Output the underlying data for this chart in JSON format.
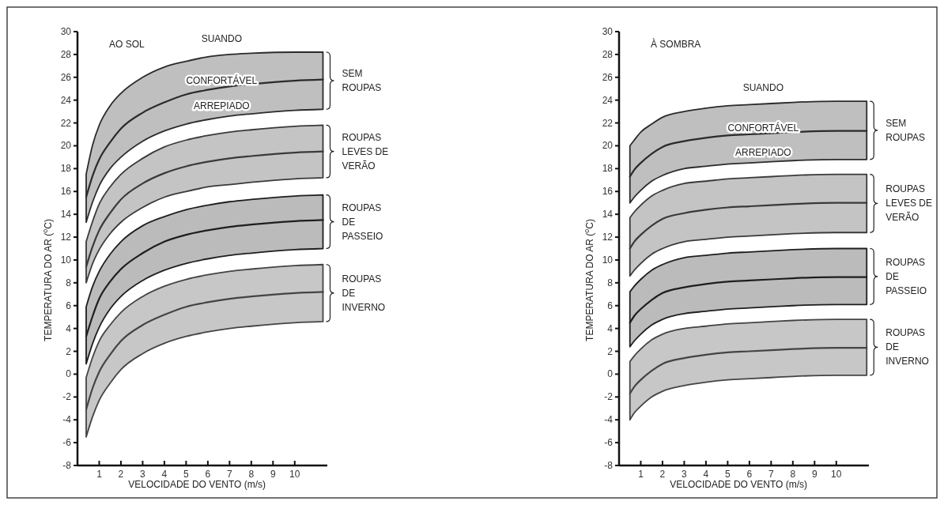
{
  "chart_data": [
    {
      "type": "line",
      "title": "AO SOL",
      "xlabel": "VELOCIDADE DO VENTO (m/s)",
      "ylabel": "TEMPERATURA DO AR ($^{o}$C)",
      "xlim": [
        0,
        11.5
      ],
      "xticks": [
        1,
        2,
        3,
        4,
        5,
        6,
        7,
        8,
        9,
        10
      ],
      "ylim": [
        -8,
        30
      ],
      "yticks": [
        -8,
        -6,
        -4,
        -2,
        0,
        2,
        4,
        6,
        8,
        10,
        12,
        14,
        16,
        18,
        20,
        22,
        24,
        26,
        28,
        30
      ],
      "grid": false,
      "legend": false,
      "x": [
        0.4,
        0.7,
        1,
        1.5,
        2,
        3,
        4,
        5,
        6,
        7,
        8,
        10,
        11.3
      ],
      "annotations": [
        "SUANDO",
        "CONFORTÁVEL",
        "ARREPIADO"
      ],
      "series": [
        {
          "name": "SEM ROUPAS",
          "color": "#2b2b2b",
          "values": [
            15.5,
            17.4,
            18.8,
            20.3,
            21.5,
            22.9,
            23.8,
            24.5,
            24.9,
            25.2,
            25.4,
            25.7,
            25.8
          ],
          "lower": [
            13.3,
            15.1,
            16.5,
            18.0,
            19.0,
            20.4,
            21.3,
            21.9,
            22.3,
            22.6,
            22.8,
            23.1,
            23.2
          ],
          "upper": [
            17.5,
            20.1,
            21.8,
            23.5,
            24.6,
            26.0,
            26.9,
            27.4,
            27.8,
            28.0,
            28.1,
            28.2,
            28.2
          ]
        },
        {
          "name": "ROUPAS LEVES DE VERÃO",
          "color": "#3a3a3a",
          "values": [
            9.4,
            11.2,
            12.6,
            14.1,
            15.3,
            16.7,
            17.6,
            18.2,
            18.6,
            18.9,
            19.1,
            19.4,
            19.5
          ],
          "lower": [
            8.0,
            9.7,
            10.9,
            12.3,
            13.3,
            14.6,
            15.5,
            16.0,
            16.4,
            16.6,
            16.8,
            17.1,
            17.2
          ],
          "upper": [
            11.6,
            13.4,
            14.9,
            16.4,
            17.5,
            18.9,
            19.9,
            20.5,
            20.9,
            21.2,
            21.4,
            21.7,
            21.8
          ]
        },
        {
          "name": "ROUPAS DE PASSEIO",
          "color": "#1e1e1e",
          "values": [
            3.3,
            5.1,
            6.6,
            8.1,
            9.2,
            10.6,
            11.6,
            12.2,
            12.6,
            12.9,
            13.1,
            13.4,
            13.5
          ],
          "lower": [
            0.9,
            2.7,
            4.1,
            5.7,
            6.8,
            8.2,
            9.1,
            9.7,
            10.1,
            10.4,
            10.6,
            10.9,
            11.0
          ],
          "upper": [
            5.9,
            7.7,
            9.0,
            10.5,
            11.6,
            13.0,
            13.8,
            14.4,
            14.8,
            15.1,
            15.3,
            15.6,
            15.7
          ]
        },
        {
          "name": "ROUPAS DE INVERNO",
          "color": "#444444",
          "values": [
            -3.1,
            -1.2,
            0.2,
            1.7,
            2.9,
            4.3,
            5.2,
            5.9,
            6.3,
            6.6,
            6.8,
            7.1,
            7.2
          ],
          "lower": [
            -5.5,
            -3.7,
            -2.3,
            -0.8,
            0.4,
            1.8,
            2.7,
            3.3,
            3.7,
            4.0,
            4.2,
            4.5,
            4.6
          ],
          "upper": [
            -0.3,
            1.5,
            2.9,
            4.3,
            5.4,
            6.8,
            7.7,
            8.3,
            8.7,
            9.0,
            9.2,
            9.5,
            9.6
          ]
        }
      ]
    },
    {
      "type": "line",
      "title": "À SOMBRA",
      "xlabel": "VELOCIDADE DO VENTO (m/s)",
      "ylabel": "TEMPERATURA DO AR ($^{o}$C)",
      "xlim": [
        0,
        11.5
      ],
      "xticks": [
        1,
        2,
        3,
        4,
        5,
        6,
        7,
        8,
        9,
        10
      ],
      "ylim": [
        -8,
        30
      ],
      "yticks": [
        -8,
        -6,
        -4,
        -2,
        0,
        2,
        4,
        6,
        8,
        10,
        12,
        14,
        16,
        18,
        20,
        22,
        24,
        26,
        28,
        30
      ],
      "grid": false,
      "legend": false,
      "x": [
        0.5,
        0.7,
        1,
        1.5,
        2,
        3,
        4,
        5,
        6,
        7,
        8,
        10,
        11.4
      ],
      "annotations": [
        "SUANDO",
        "CONFORTÁVEL",
        "ARREPIADO"
      ],
      "series": [
        {
          "name": "SEM ROUPAS",
          "color": "#2b2b2b",
          "values": [
            17.3,
            17.9,
            18.5,
            19.3,
            19.9,
            20.4,
            20.7,
            20.9,
            21.0,
            21.1,
            21.2,
            21.3,
            21.3
          ],
          "lower": [
            15.0,
            15.5,
            16.1,
            16.9,
            17.4,
            18.0,
            18.2,
            18.4,
            18.5,
            18.6,
            18.7,
            18.8,
            18.8
          ],
          "upper": [
            20.0,
            20.5,
            21.2,
            21.9,
            22.5,
            23.0,
            23.3,
            23.5,
            23.6,
            23.7,
            23.8,
            23.9,
            23.9
          ]
        },
        {
          "name": "ROUPAS LEVES DE VERÃO",
          "color": "#3a3a3a",
          "values": [
            11.0,
            11.6,
            12.2,
            13.0,
            13.6,
            14.1,
            14.4,
            14.6,
            14.7,
            14.8,
            14.9,
            15.0,
            15.0
          ],
          "lower": [
            8.6,
            9.1,
            9.7,
            10.5,
            11.0,
            11.6,
            11.8,
            12.0,
            12.1,
            12.2,
            12.3,
            12.4,
            12.4
          ],
          "upper": [
            13.7,
            14.2,
            14.8,
            15.6,
            16.1,
            16.7,
            16.9,
            17.1,
            17.2,
            17.3,
            17.4,
            17.5,
            17.5
          ]
        },
        {
          "name": "ROUPAS DE PASSEIO",
          "color": "#1e1e1e",
          "values": [
            4.5,
            5.1,
            5.7,
            6.5,
            7.1,
            7.6,
            7.9,
            8.1,
            8.2,
            8.3,
            8.4,
            8.5,
            8.5
          ],
          "lower": [
            2.4,
            2.9,
            3.5,
            4.3,
            4.8,
            5.3,
            5.5,
            5.7,
            5.8,
            5.9,
            6.0,
            6.1,
            6.1
          ],
          "upper": [
            7.2,
            7.7,
            8.3,
            9.1,
            9.6,
            10.2,
            10.4,
            10.6,
            10.7,
            10.8,
            10.9,
            11.0,
            11.0
          ]
        },
        {
          "name": "ROUPAS DE INVERNO",
          "color": "#444444",
          "values": [
            -1.7,
            -1.1,
            -0.5,
            0.3,
            0.9,
            1.4,
            1.7,
            1.9,
            2.0,
            2.1,
            2.2,
            2.3,
            2.3
          ],
          "lower": [
            -4.0,
            -3.4,
            -2.8,
            -2.0,
            -1.5,
            -1.0,
            -0.7,
            -0.5,
            -0.4,
            -0.3,
            -0.2,
            -0.1,
            -0.1
          ],
          "upper": [
            1.1,
            1.6,
            2.2,
            3.0,
            3.5,
            4.0,
            4.2,
            4.4,
            4.5,
            4.6,
            4.7,
            4.8,
            4.8
          ]
        }
      ]
    }
  ]
}
